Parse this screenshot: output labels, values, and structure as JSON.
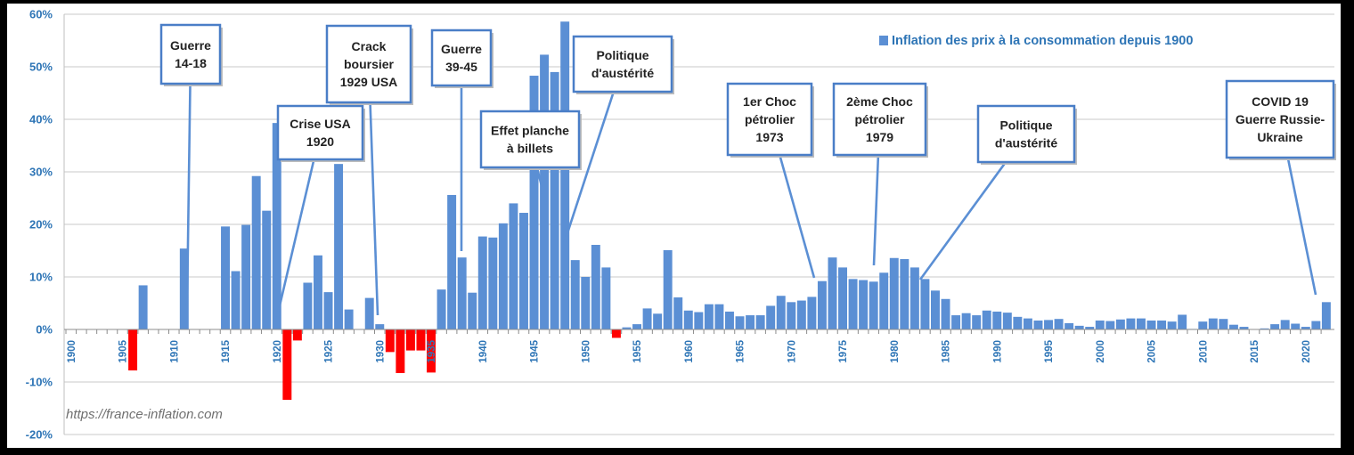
{
  "chart_data": {
    "type": "bar",
    "legend": "Inflation des prix à la consommation depuis 1900",
    "legend_position": "top-right",
    "source": "https://france-inflation.com",
    "ylim": [
      -20,
      60
    ],
    "yticks": [
      -20,
      -10,
      0,
      10,
      20,
      30,
      40,
      50,
      60
    ],
    "ytick_labels": [
      "-20%",
      "-10%",
      "0%",
      "10%",
      "20%",
      "30%",
      "40%",
      "50%",
      "60%"
    ],
    "xticks": [
      1900,
      1905,
      1910,
      1915,
      1920,
      1925,
      1930,
      1935,
      1940,
      1945,
      1950,
      1955,
      1960,
      1965,
      1970,
      1975,
      1980,
      1985,
      1990,
      1995,
      2000,
      2005,
      2010,
      2015,
      2020
    ],
    "grid": true,
    "colors": {
      "positive": "#5B8FD4",
      "negative": "#FF0000",
      "axis_text": "#2E75B6",
      "annotation_border": "#4A7EC7"
    },
    "years": [
      1900,
      1901,
      1902,
      1903,
      1904,
      1905,
      1906,
      1907,
      1908,
      1909,
      1910,
      1911,
      1912,
      1913,
      1914,
      1915,
      1916,
      1917,
      1918,
      1919,
      1920,
      1921,
      1922,
      1923,
      1924,
      1925,
      1926,
      1927,
      1928,
      1929,
      1930,
      1931,
      1932,
      1933,
      1934,
      1935,
      1936,
      1937,
      1938,
      1939,
      1940,
      1941,
      1942,
      1943,
      1944,
      1945,
      1946,
      1947,
      1948,
      1949,
      1950,
      1951,
      1952,
      1953,
      1954,
      1955,
      1956,
      1957,
      1958,
      1959,
      1960,
      1961,
      1962,
      1963,
      1964,
      1965,
      1966,
      1967,
      1968,
      1969,
      1970,
      1971,
      1972,
      1973,
      1974,
      1975,
      1976,
      1977,
      1978,
      1979,
      1980,
      1981,
      1982,
      1983,
      1984,
      1985,
      1986,
      1987,
      1988,
      1989,
      1990,
      1991,
      1992,
      1993,
      1994,
      1995,
      1996,
      1997,
      1998,
      1999,
      2000,
      2001,
      2002,
      2003,
      2004,
      2005,
      2006,
      2007,
      2008,
      2009,
      2010,
      2011,
      2012,
      2013,
      2014,
      2015,
      2016,
      2017,
      2018,
      2019,
      2020,
      2021,
      2022
    ],
    "values": [
      0,
      0,
      0,
      0,
      0,
      0,
      -7.8,
      8.4,
      0,
      0,
      0,
      15.4,
      0,
      0,
      0,
      19.6,
      11.1,
      19.9,
      29.2,
      22.6,
      39.3,
      -13.4,
      -2.1,
      8.9,
      14.1,
      7.1,
      31.5,
      3.8,
      0,
      6,
      1,
      -4.3,
      -8.3,
      -4,
      -4,
      -8.2,
      7.6,
      25.6,
      13.7,
      7,
      17.7,
      17.5,
      20.2,
      24,
      22.2,
      48.3,
      52.3,
      49,
      58.6,
      13.2,
      10,
      16.1,
      11.8,
      -1.6,
      0.4,
      1,
      4,
      3,
      15.1,
      6.1,
      3.6,
      3.3,
      4.8,
      4.8,
      3.4,
      2.5,
      2.7,
      2.7,
      4.5,
      6.4,
      5.2,
      5.5,
      6.2,
      9.2,
      13.7,
      11.8,
      9.6,
      9.4,
      9.1,
      10.8,
      13.6,
      13.4,
      11.8,
      9.6,
      7.4,
      5.8,
      2.7,
      3.1,
      2.7,
      3.6,
      3.4,
      3.2,
      2.4,
      2.1,
      1.7,
      1.8,
      2,
      1.2,
      0.7,
      0.5,
      1.7,
      1.6,
      1.9,
      2.1,
      2.1,
      1.7,
      1.7,
      1.5,
      2.8,
      0.1,
      1.5,
      2.1,
      2,
      0.9,
      0.5,
      0,
      0.2,
      1,
      1.8,
      1.1,
      0.5,
      1.6,
      5.2
    ]
  },
  "annotations": [
    {
      "lines": [
        "Guerre",
        "14-18"
      ]
    },
    {
      "lines": [
        "Crise USA",
        "1920"
      ]
    },
    {
      "lines": [
        "Crack",
        "boursier",
        "1929 USA"
      ]
    },
    {
      "lines": [
        "Guerre",
        "39-45"
      ]
    },
    {
      "lines": [
        "Effet planche",
        "à billets"
      ]
    },
    {
      "lines": [
        "Politique",
        "d'austérité"
      ]
    },
    {
      "lines": [
        "1er Choc",
        "pétrolier",
        "1973"
      ]
    },
    {
      "lines": [
        "2ème Choc",
        "pétrolier",
        "1979"
      ]
    },
    {
      "lines": [
        "Politique",
        "d'austérité"
      ]
    },
    {
      "lines": [
        "COVID 19",
        "Guerre Russie-",
        "Ukraine"
      ]
    }
  ]
}
